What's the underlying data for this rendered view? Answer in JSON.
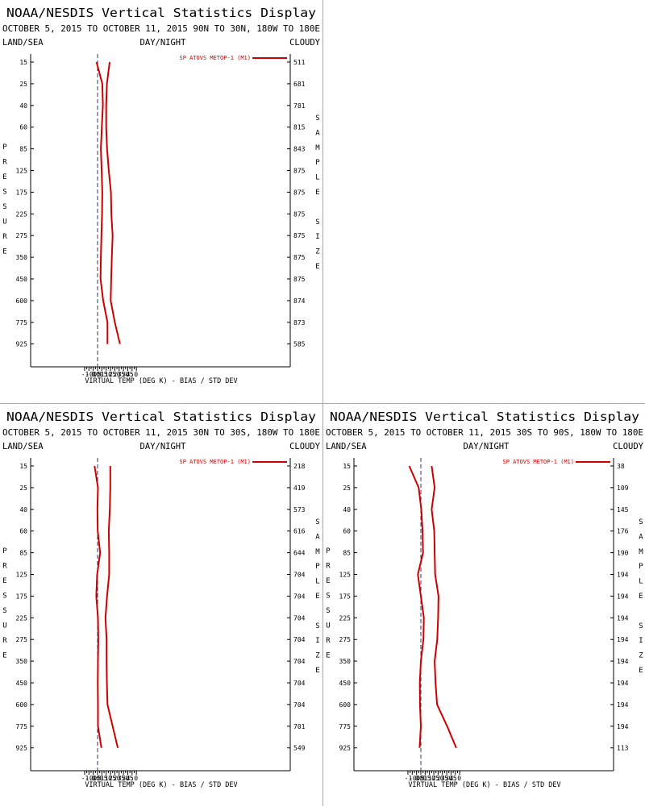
{
  "chart_data": [
    {
      "type": "line",
      "title": "NOAA/NESDIS Vertical Statistics Display",
      "subtitle": "OCTOBER 5, 2015 TO OCTOBER 11, 2015 90N TO 30N, 180W TO 180E",
      "header_left": "LAND/SEA",
      "header_center": "DAY/NIGHT",
      "header_right": "CLOUDY",
      "legend": "SP ATOVS METOP-1 (M1)",
      "xlabel": "VIRTUAL TEMP (DEG K) - BIAS / STD DEV",
      "ylabel": "PRESSURE",
      "right_label": "SAMPLE SIZE",
      "xlim": [
        -1.5,
        4.5
      ],
      "xticks": [
        "-1.0",
        "-0.5",
        "0.0",
        "0.5",
        "1.0",
        "1.5",
        "2.0",
        "2.5",
        "3.0",
        "3.5",
        "4.0"
      ],
      "pressure_levels": [
        "15",
        "25",
        "40",
        "60",
        "85",
        "125",
        "175",
        "225",
        "275",
        "350",
        "450",
        "600",
        "775",
        "925"
      ],
      "sample_size": [
        "511",
        "681",
        "781",
        "815",
        "843",
        "875",
        "875",
        "875",
        "875",
        "875",
        "875",
        "874",
        "873",
        "585"
      ],
      "series": [
        {
          "values": [
            -0.12,
            0.55,
            0.62,
            0.5,
            0.38,
            0.48,
            0.55,
            0.52,
            0.45,
            0.38,
            0.35,
            0.65,
            1.15,
            1.15
          ]
        },
        {
          "values": [
            1.4,
            1.08,
            1.0,
            1.0,
            1.1,
            1.3,
            1.55,
            1.6,
            1.75,
            1.65,
            1.58,
            1.52,
            2.0,
            2.6
          ]
        }
      ]
    },
    {
      "type": "line",
      "title": "NOAA/NESDIS Vertical Statistics Display",
      "subtitle": "OCTOBER 5, 2015 TO OCTOBER 11, 2015 30N TO 30S, 180W TO 180E",
      "header_left": "LAND/SEA",
      "header_center": "DAY/NIGHT",
      "header_right": "CLOUDY",
      "legend": "SP ATOVS METOP-1 (M1)",
      "xlabel": "VIRTUAL TEMP (DEG K) - BIAS / STD DEV",
      "ylabel": "PRESSURE",
      "right_label": "SAMPLE SIZE",
      "xlim": [
        -1.5,
        4.5
      ],
      "xticks": [
        "-1.0",
        "-0.5",
        "0.0",
        "0.5",
        "1.0",
        "1.5",
        "2.0",
        "2.5",
        "3.0",
        "3.5",
        "4.0"
      ],
      "pressure_levels": [
        "15",
        "25",
        "40",
        "60",
        "85",
        "125",
        "175",
        "225",
        "275",
        "350",
        "450",
        "600",
        "775",
        "925"
      ],
      "sample_size": [
        "218",
        "419",
        "573",
        "616",
        "644",
        "704",
        "704",
        "704",
        "704",
        "704",
        "704",
        "704",
        "701",
        "549"
      ],
      "series": [
        {
          "values": [
            -0.35,
            0.05,
            -0.02,
            0.02,
            0.3,
            -0.05,
            -0.15,
            0.05,
            0.08,
            0.05,
            0.03,
            0.05,
            0.05,
            0.45
          ]
        },
        {
          "values": [
            1.48,
            1.48,
            1.42,
            1.3,
            1.35,
            1.35,
            1.1,
            0.92,
            1.05,
            1.05,
            1.08,
            1.15,
            1.75,
            2.35
          ]
        }
      ]
    },
    {
      "type": "line",
      "title": "NOAA/NESDIS Vertical Statistics Display",
      "subtitle": "OCTOBER 5, 2015 TO OCTOBER 11, 2015 30S TO 90S, 180W TO 180E",
      "header_left": "LAND/SEA",
      "header_center": "DAY/NIGHT",
      "header_right": "CLOUDY",
      "legend": "SP ATOVS METOP-1 (M1)",
      "xlabel": "VIRTUAL TEMP (DEG K) - BIAS / STD DEV",
      "ylabel": "PRESSURE",
      "right_label": "SAMPLE SIZE",
      "xlim": [
        -1.5,
        4.5
      ],
      "xticks": [
        "-1.0",
        "-0.5",
        "0.0",
        "0.5",
        "1.0",
        "1.5",
        "2.0",
        "2.5",
        "3.0",
        "3.5",
        "4.0"
      ],
      "pressure_levels": [
        "15",
        "25",
        "40",
        "60",
        "85",
        "125",
        "175",
        "225",
        "275",
        "350",
        "450",
        "600",
        "775",
        "925"
      ],
      "sample_size": [
        "38",
        "109",
        "145",
        "176",
        "190",
        "194",
        "194",
        "194",
        "194",
        "194",
        "194",
        "194",
        "194",
        "113"
      ],
      "series": [
        {
          "values": [
            -1.35,
            -0.25,
            0.05,
            0.2,
            0.25,
            -0.35,
            0.0,
            0.35,
            0.3,
            0.0,
            -0.12,
            -0.1,
            0.0,
            -0.15
          ]
        },
        {
          "values": [
            1.25,
            1.6,
            1.25,
            1.55,
            1.6,
            1.65,
            2.05,
            2.0,
            1.9,
            1.6,
            1.7,
            1.88,
            3.05,
            4.1
          ]
        }
      ]
    }
  ]
}
